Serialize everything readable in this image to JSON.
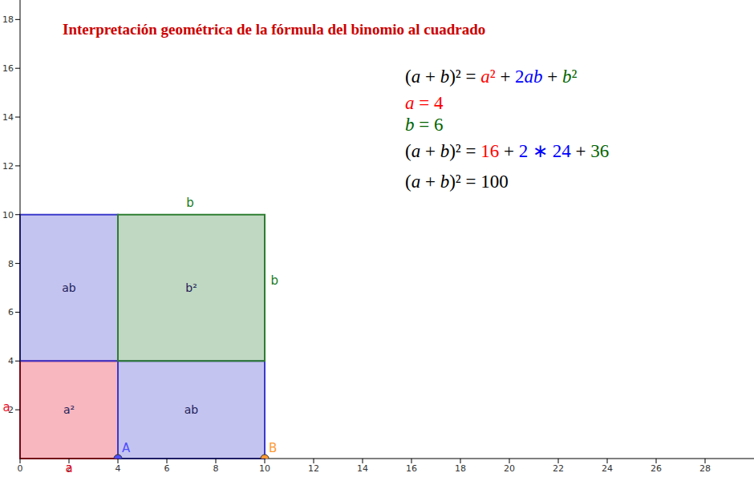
{
  "chart_data": {
    "type": "rectangles",
    "title": "Interpretación geométrica de la fórmula del binomio al cuadrado",
    "xlim": [
      0,
      30
    ],
    "ylim": [
      0,
      18.8
    ],
    "xticks": [
      0,
      2,
      4,
      6,
      8,
      10,
      12,
      14,
      16,
      18,
      20,
      22,
      24,
      26,
      28
    ],
    "yticks": [
      2,
      4,
      6,
      8,
      10,
      12,
      14,
      16,
      18
    ],
    "grid": false,
    "rectangles": [
      {
        "label": "a²",
        "x": [
          0,
          4
        ],
        "y": [
          0,
          4
        ],
        "color": "#e8102c"
      },
      {
        "label": "ab",
        "x": [
          4,
          10
        ],
        "y": [
          0,
          4
        ],
        "color": "#3a3acc"
      },
      {
        "label": "ab",
        "x": [
          0,
          4
        ],
        "y": [
          4,
          10
        ],
        "color": "#3a3acc"
      },
      {
        "label": "b²",
        "x": [
          4,
          10
        ],
        "y": [
          4,
          10
        ],
        "color": "#2e7d32"
      }
    ],
    "points": [
      {
        "label": "A",
        "x": 4,
        "y": 0,
        "color": "#4d4dff"
      },
      {
        "label": "B",
        "x": 10,
        "y": 0,
        "color": "#ff9933"
      }
    ],
    "annotations": [
      {
        "text": "a",
        "x": 2,
        "y": -0.38,
        "color": "#e8102c"
      },
      {
        "text": "a",
        "x": -0.55,
        "y": 2.1,
        "color": "#e8102c"
      },
      {
        "text": "b",
        "x": 6.95,
        "y": 10.5,
        "color": "#1b7a1b"
      },
      {
        "text": "b",
        "x": 10.4,
        "y": 7.3,
        "color": "#1b7a1b"
      }
    ],
    "formulas": [
      [
        {
          "text": "(a + b)² = ",
          "color": "#000000"
        },
        {
          "text": "a²",
          "color": "#ff0000"
        },
        {
          "text": " + ",
          "color": "#000000"
        },
        {
          "text": "2ab",
          "color": "#0000ff"
        },
        {
          "text": " + ",
          "color": "#000000"
        },
        {
          "text": "b²",
          "color": "#006400"
        }
      ],
      [
        {
          "text": "a = 4",
          "color": "#ff0000"
        }
      ],
      [
        {
          "text": "b = 6",
          "color": "#006400"
        }
      ],
      [
        {
          "text": "(a + b)² = ",
          "color": "#000000"
        },
        {
          "text": "16",
          "color": "#ff0000"
        },
        {
          "text": " + ",
          "color": "#000000"
        },
        {
          "text": "2 ∗ 24",
          "color": "#0000ff"
        },
        {
          "text": " + ",
          "color": "#000000"
        },
        {
          "text": "36",
          "color": "#006400"
        }
      ],
      [
        {
          "text": "(a + b)² = 100",
          "color": "#000000"
        }
      ]
    ]
  }
}
